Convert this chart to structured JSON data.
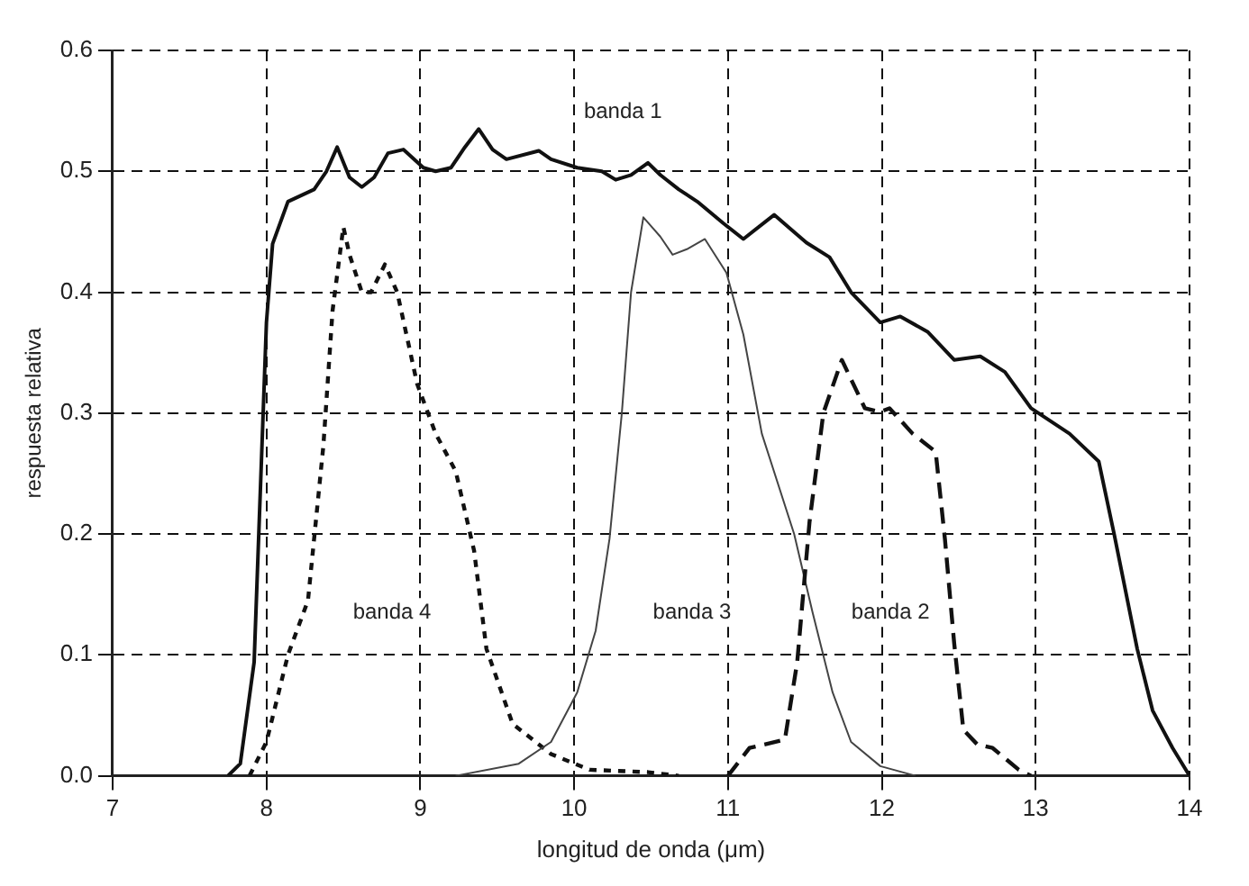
{
  "chart_data": {
    "type": "line",
    "xlabel": "longitud de onda (μm)",
    "ylabel": "respuesta relativa",
    "xlim": [
      7,
      14
    ],
    "xticks": [
      7,
      8,
      9,
      10,
      11,
      12,
      13,
      14
    ],
    "ylim": [
      0,
      0.6
    ],
    "yticks": [
      {
        "value": 0,
        "label": "0.0"
      },
      {
        "value": 0.1,
        "label": "0.1"
      },
      {
        "value": 0.2,
        "label": "0.2"
      },
      {
        "value": 0.3,
        "label": "0.3"
      },
      {
        "value": 0.4,
        "label": "0.4"
      },
      {
        "value": 0.5,
        "label": "0.5"
      },
      {
        "value": 0.6,
        "label": "0.6"
      }
    ],
    "grid": true,
    "marker": "none",
    "series": [
      {
        "name": "banda 1",
        "color": "#111111",
        "line_style": "solid",
        "x": [
          7.75,
          7.83,
          7.92,
          8.0,
          8.04,
          8.14,
          8.31,
          8.39,
          8.46,
          8.54,
          8.62,
          8.7,
          8.79,
          8.89,
          9.02,
          9.1,
          9.2,
          9.29,
          9.38,
          9.47,
          9.56,
          9.77,
          9.85,
          10.02,
          10.18,
          10.27,
          10.37,
          10.48,
          10.56,
          10.68,
          10.8,
          10.97,
          11.1,
          11.3,
          11.51,
          11.66,
          11.8,
          11.99,
          12.12,
          12.3,
          12.47,
          12.64,
          12.8,
          12.97,
          13.22,
          13.41,
          13.51,
          13.66,
          13.76,
          13.89,
          14.0
        ],
        "values": [
          0,
          0.01,
          0.094,
          0.375,
          0.44,
          0.475,
          0.485,
          0.5,
          0.52,
          0.495,
          0.487,
          0.495,
          0.515,
          0.518,
          0.503,
          0.5,
          0.503,
          0.52,
          0.535,
          0.518,
          0.51,
          0.517,
          0.51,
          0.503,
          0.5,
          0.493,
          0.497,
          0.507,
          0.497,
          0.485,
          0.475,
          0.457,
          0.444,
          0.464,
          0.441,
          0.429,
          0.4,
          0.375,
          0.38,
          0.367,
          0.344,
          0.347,
          0.334,
          0.304,
          0.283,
          0.26,
          0.2,
          0.105,
          0.054,
          0.023,
          0
        ]
      },
      {
        "name": "banda 2",
        "color": "#111111",
        "line_style": "dashed",
        "x": [
          11.0,
          11.14,
          11.37,
          11.45,
          11.53,
          11.62,
          11.74,
          11.89,
          11.99,
          12.05,
          12.2,
          12.35,
          12.41,
          12.47,
          12.53,
          12.62,
          12.72,
          12.89,
          12.97
        ],
        "values": [
          0,
          0.023,
          0.03,
          0.094,
          0.21,
          0.3,
          0.344,
          0.304,
          0.301,
          0.304,
          0.283,
          0.268,
          0.196,
          0.11,
          0.038,
          0.026,
          0.023,
          0.005,
          0
        ]
      },
      {
        "name": "banda 3",
        "color": "#444444",
        "line_style": "solid",
        "x": [
          9.23,
          9.64,
          9.85,
          10.02,
          10.14,
          10.23,
          10.31,
          10.37,
          10.45,
          10.56,
          10.64,
          10.74,
          10.85,
          10.99,
          11.1,
          11.22,
          11.43,
          11.55,
          11.68,
          11.8,
          11.99,
          12.22
        ],
        "values": [
          0,
          0.01,
          0.028,
          0.069,
          0.12,
          0.196,
          0.3,
          0.4,
          0.462,
          0.446,
          0.431,
          0.436,
          0.444,
          0.416,
          0.365,
          0.283,
          0.2,
          0.135,
          0.069,
          0.028,
          0.008,
          0
        ]
      },
      {
        "name": "banda 4",
        "color": "#111111",
        "line_style": "dotted",
        "x": [
          7.89,
          8.0,
          8.14,
          8.27,
          8.37,
          8.43,
          8.5,
          8.54,
          8.62,
          8.68,
          8.77,
          8.85,
          8.98,
          9.1,
          9.23,
          9.35,
          9.43,
          9.6,
          9.85,
          10.1,
          10.48,
          10.68
        ],
        "values": [
          0,
          0.028,
          0.1,
          0.145,
          0.273,
          0.385,
          0.454,
          0.431,
          0.4,
          0.4,
          0.423,
          0.4,
          0.324,
          0.283,
          0.252,
          0.186,
          0.105,
          0.043,
          0.018,
          0.005,
          0.003,
          0
        ]
      }
    ]
  }
}
